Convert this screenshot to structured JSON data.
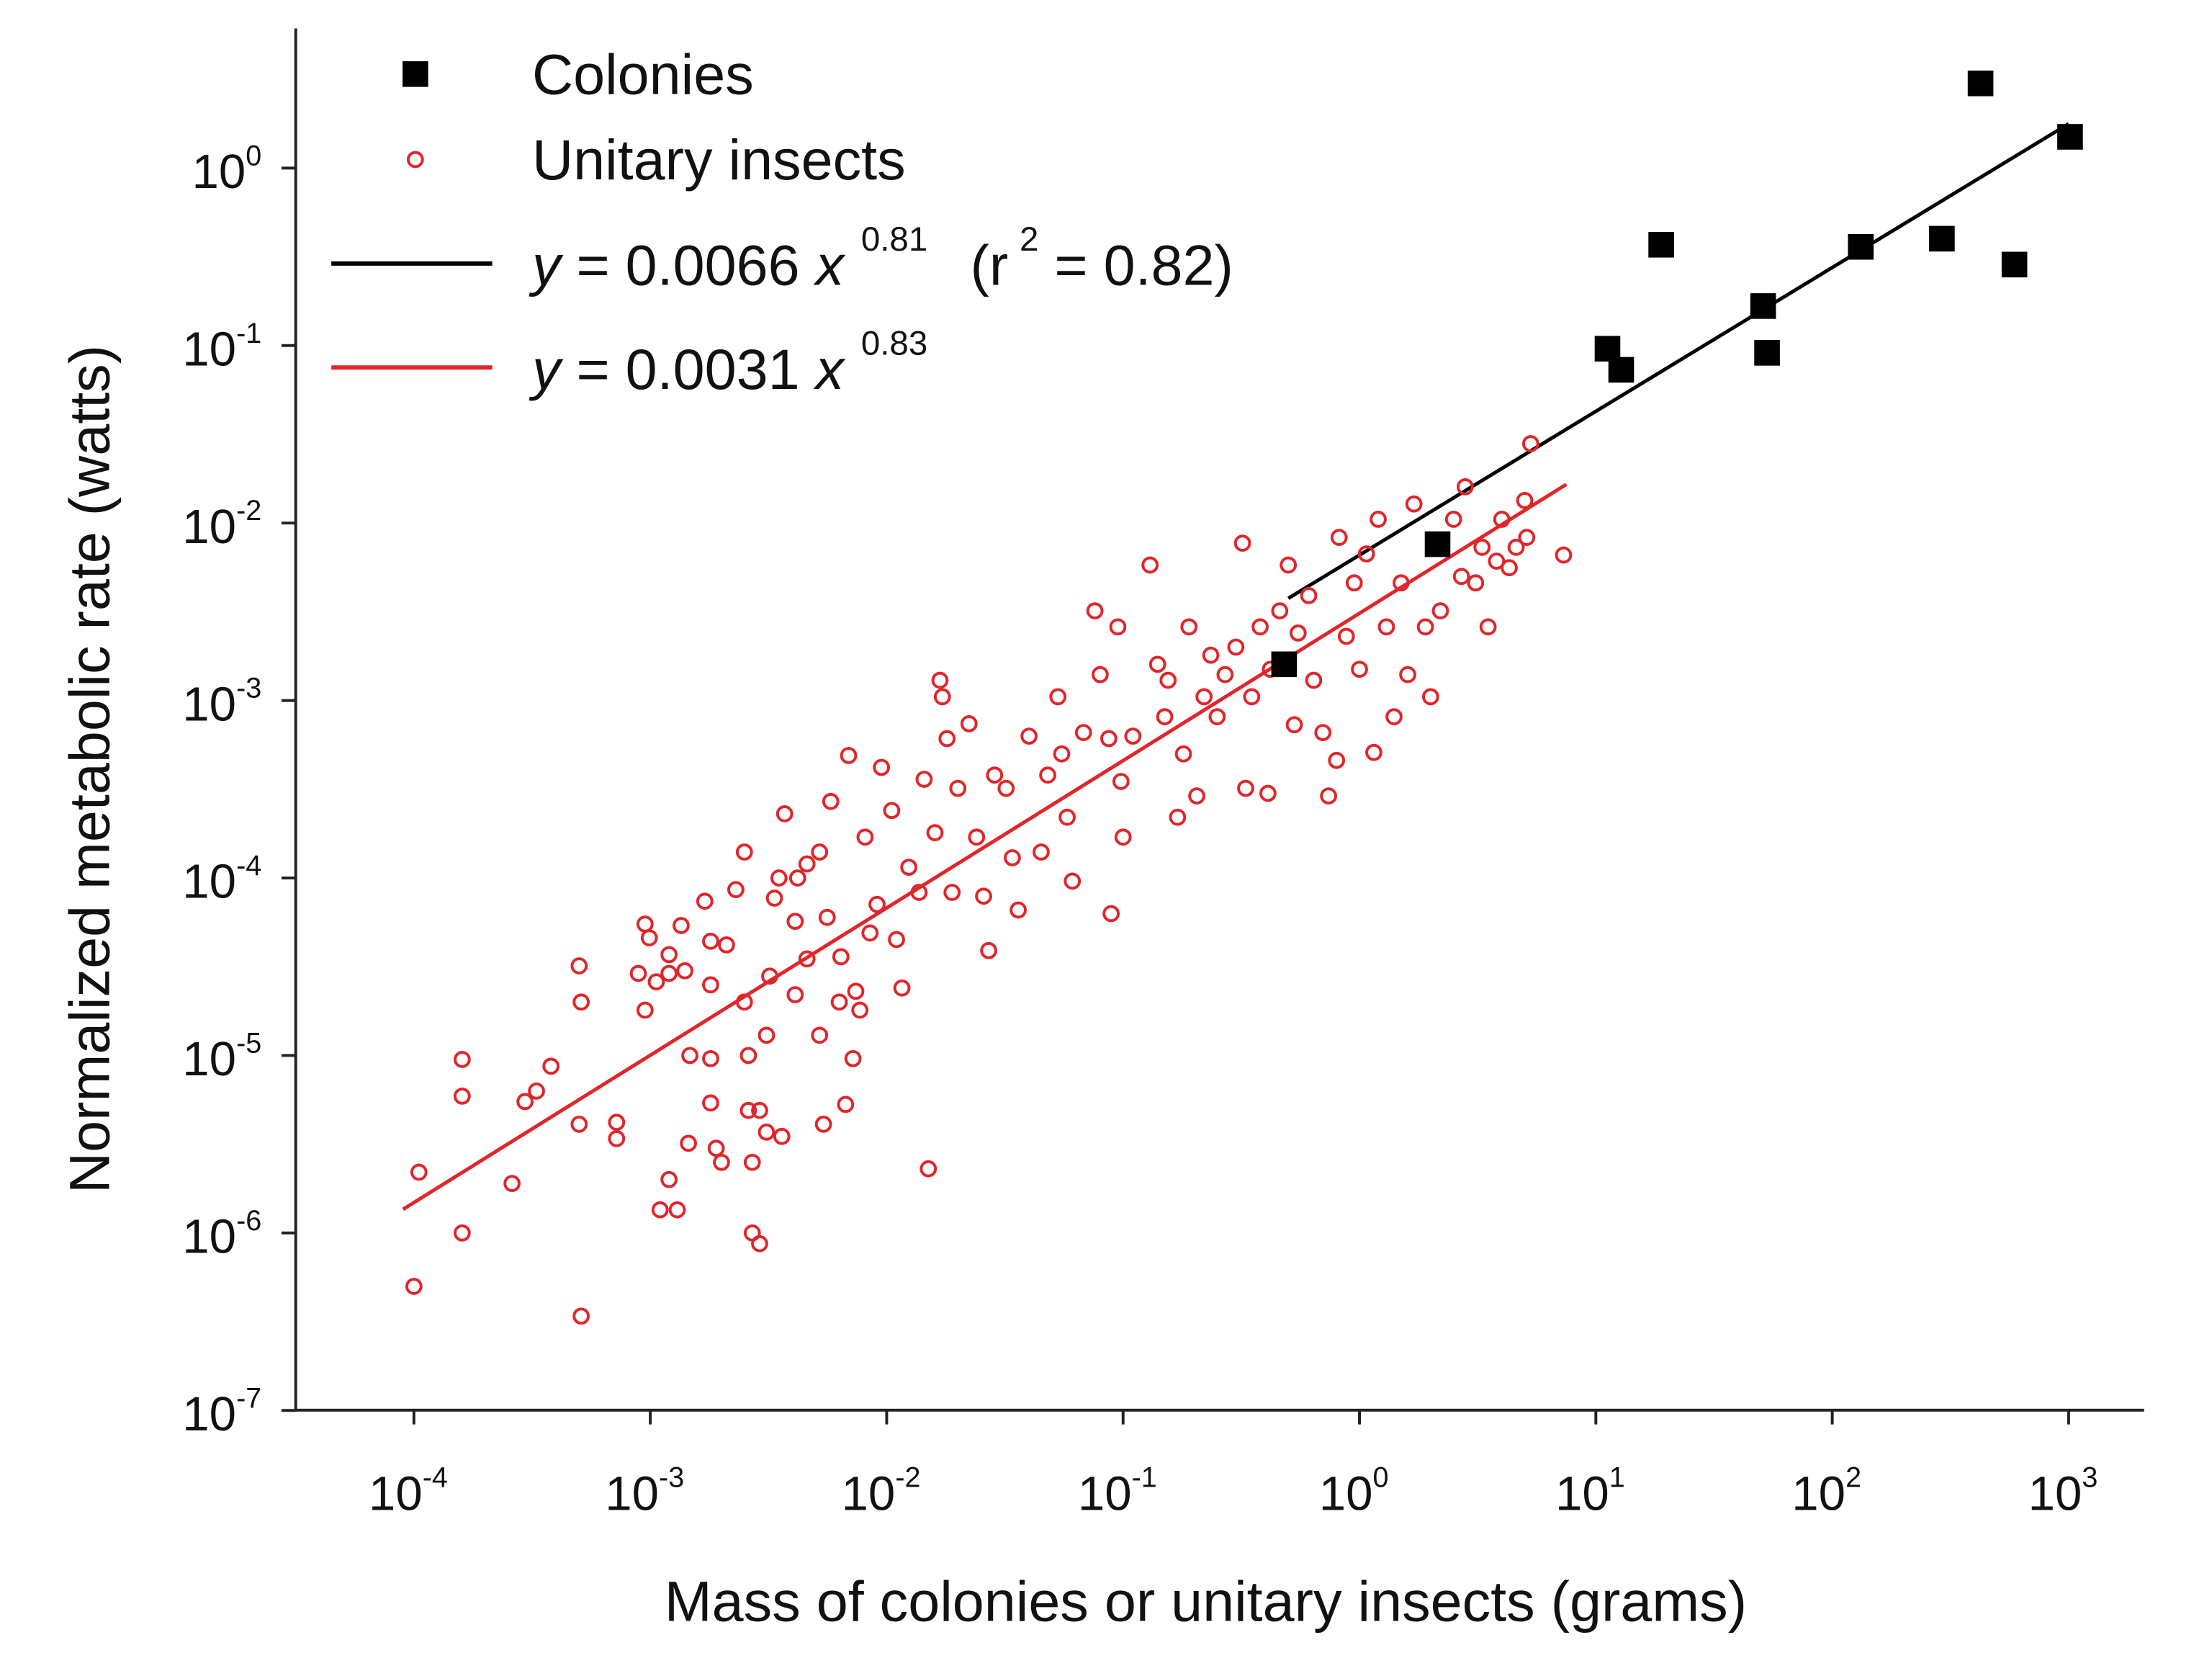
{
  "chart_data": {
    "type": "scatter",
    "xlabel": "Mass of colonies or unitary insects (grams)",
    "ylabel": "Normalized metabolic rate (watts)",
    "x_scale": "log",
    "y_scale": "log",
    "xlim": [
      1.5e-05,
      3000
    ],
    "ylim": [
      1e-07,
      20
    ],
    "grid": false,
    "legend_position": "top-left",
    "x_ticks": [
      {
        "base": "10",
        "exp": "-4",
        "value": 0.0001
      },
      {
        "base": "10",
        "exp": "-3",
        "value": 0.001
      },
      {
        "base": "10",
        "exp": "-2",
        "value": 0.01
      },
      {
        "base": "10",
        "exp": "-1",
        "value": 0.1
      },
      {
        "base": "10",
        "exp": "0",
        "value": 1
      },
      {
        "base": "10",
        "exp": "1",
        "value": 10
      },
      {
        "base": "10",
        "exp": "2",
        "value": 100
      },
      {
        "base": "10",
        "exp": "3",
        "value": 1000
      }
    ],
    "y_ticks": [
      {
        "base": "10",
        "exp": "0",
        "value": 1
      },
      {
        "base": "10",
        "exp": "-1",
        "value": 0.1
      },
      {
        "base": "10",
        "exp": "-2",
        "value": 0.01
      },
      {
        "base": "10",
        "exp": "-3",
        "value": 0.001
      },
      {
        "base": "10",
        "exp": "-4",
        "value": 0.0001
      },
      {
        "base": "10",
        "exp": "-5",
        "value": 1e-05
      },
      {
        "base": "10",
        "exp": "-6",
        "value": 1e-06
      },
      {
        "base": "10",
        "exp": "-7",
        "value": 1e-07
      }
    ],
    "series": [
      {
        "name": "Colonies",
        "marker": "square",
        "color": "#000000",
        "points": [
          [
            424,
            3.0
          ],
          [
            1014,
            1.5
          ],
          [
            18.9,
            0.37
          ],
          [
            11.2,
            0.096
          ],
          [
            12.8,
            0.073
          ],
          [
            51,
            0.167
          ],
          [
            53,
            0.091
          ],
          [
            132,
            0.36
          ],
          [
            291,
            0.4
          ],
          [
            590,
            0.286
          ],
          [
            2.14,
            0.0076
          ],
          [
            0.48,
            0.0016
          ]
        ]
      },
      {
        "name": "Unitary insects",
        "marker": "open-circle",
        "color": "#e0262b",
        "points": [
          [
            0.0001,
            5e-07
          ],
          [
            0.000105,
            2.2e-06
          ],
          [
            0.00016,
            9.5e-06
          ],
          [
            0.00016,
            5.9e-06
          ],
          [
            0.00016,
            1e-06
          ],
          [
            0.00026,
            1.9e-06
          ],
          [
            0.000295,
            5.5e-06
          ],
          [
            0.00033,
            6.3e-06
          ],
          [
            0.00038,
            8.7e-06
          ],
          [
            0.0005,
            3.2e-05
          ],
          [
            0.00051,
            2e-05
          ],
          [
            0.0005,
            4.1e-06
          ],
          [
            0.00051,
            3.4e-07
          ],
          [
            0.00072,
            4.2e-06
          ],
          [
            0.00072,
            3.4e-06
          ],
          [
            0.00095,
            5.5e-05
          ],
          [
            0.00099,
            4.6e-05
          ],
          [
            0.00089,
            2.9e-05
          ],
          [
            0.00095,
            1.8e-05
          ],
          [
            0.00106,
            2.6e-05
          ],
          [
            0.0012,
            2.9e-05
          ],
          [
            0.0012,
            2e-06
          ],
          [
            0.0011,
            1.35e-06
          ],
          [
            0.0013,
            1.35e-06
          ],
          [
            0.00135,
            5.4e-05
          ],
          [
            0.0012,
            3.7e-05
          ],
          [
            0.0014,
            3e-05
          ],
          [
            0.00145,
            3.2e-06
          ],
          [
            0.00147,
            1e-05
          ],
          [
            0.0017,
            7.4e-05
          ],
          [
            0.0018,
            4.4e-05
          ],
          [
            0.0018,
            2.5e-05
          ],
          [
            0.0018,
            9.6e-06
          ],
          [
            0.0018,
            5.4e-06
          ],
          [
            0.0019,
            3e-06
          ],
          [
            0.002,
            2.5e-06
          ],
          [
            0.0021,
            4.2e-05
          ],
          [
            0.0023,
            8.6e-05
          ],
          [
            0.0025,
            0.00014
          ],
          [
            0.0025,
            2e-05
          ],
          [
            0.0026,
            1e-05
          ],
          [
            0.0026,
            4.9e-06
          ],
          [
            0.0027,
            2.5e-06
          ],
          [
            0.0027,
            1e-06
          ],
          [
            0.0029,
            8.7e-07
          ],
          [
            0.0029,
            4.9e-06
          ],
          [
            0.0031,
            3.7e-06
          ],
          [
            0.0031,
            1.3e-05
          ],
          [
            0.0032,
            2.8e-05
          ],
          [
            0.00335,
            7.7e-05
          ],
          [
            0.0035,
            0.0001
          ],
          [
            0.0037,
            0.00023
          ],
          [
            0.0036,
            3.5e-06
          ],
          [
            0.0041,
            5.7e-05
          ],
          [
            0.0041,
            2.2e-05
          ],
          [
            0.0042,
            0.0001
          ],
          [
            0.0046,
            0.00012
          ],
          [
            0.0046,
            3.5e-05
          ],
          [
            0.0052,
            0.00014
          ],
          [
            0.0052,
            1.3e-05
          ],
          [
            0.0054,
            4.1e-06
          ],
          [
            0.0056,
            6e-05
          ],
          [
            0.0058,
            0.00027
          ],
          [
            0.0063,
            2e-05
          ],
          [
            0.0064,
            3.6e-05
          ],
          [
            0.0067,
            5.3e-06
          ],
          [
            0.0069,
            0.00049
          ],
          [
            0.0072,
            9.6e-06
          ],
          [
            0.0074,
            2.3e-05
          ],
          [
            0.0077,
            1.8e-05
          ],
          [
            0.0081,
            0.00017
          ],
          [
            0.0085,
            4.9e-05
          ],
          [
            0.0091,
            7.1e-05
          ],
          [
            0.0095,
            0.00042
          ],
          [
            0.0105,
            0.00024
          ],
          [
            0.011,
            4.5e-05
          ],
          [
            0.0116,
            2.4e-05
          ],
          [
            0.0124,
            0.000115
          ],
          [
            0.0137,
            8.3e-05
          ],
          [
            0.0144,
            0.00036
          ],
          [
            0.015,
            2.3e-06
          ],
          [
            0.016,
            0.00018
          ],
          [
            0.0168,
            0.0013
          ],
          [
            0.0172,
            0.00105
          ],
          [
            0.018,
            0.00061
          ],
          [
            0.0189,
            8.3e-05
          ],
          [
            0.02,
            0.00032
          ],
          [
            0.0223,
            0.00074
          ],
          [
            0.024,
            0.00017
          ],
          [
            0.0257,
            7.9e-05
          ],
          [
            0.027,
            3.9e-05
          ],
          [
            0.0286,
            0.00038
          ],
          [
            0.032,
            0.00032
          ],
          [
            0.034,
            0.00013
          ],
          [
            0.036,
            6.6e-05
          ],
          [
            0.04,
            0.00063
          ],
          [
            0.045,
            0.00014
          ],
          [
            0.048,
            0.00038
          ],
          [
            0.053,
            0.00105
          ],
          [
            0.055,
            0.0005
          ],
          [
            0.058,
            0.00022
          ],
          [
            0.061,
            9.6e-05
          ],
          [
            0.068,
            0.00066
          ],
          [
            0.076,
            0.0032
          ],
          [
            0.08,
            0.0014
          ],
          [
            0.087,
            0.00061
          ],
          [
            0.089,
            6.3e-05
          ],
          [
            0.095,
            0.0026
          ],
          [
            0.098,
            0.00035
          ],
          [
            0.1,
            0.00017
          ],
          [
            0.11,
            0.00063
          ],
          [
            0.13,
            0.0058
          ],
          [
            0.14,
            0.0016
          ],
          [
            0.15,
            0.00081
          ],
          [
            0.155,
            0.0013
          ],
          [
            0.17,
            0.00022
          ],
          [
            0.18,
            0.0005
          ],
          [
            0.19,
            0.0026
          ],
          [
            0.205,
            0.00029
          ],
          [
            0.22,
            0.00105
          ],
          [
            0.235,
            0.0018
          ],
          [
            0.25,
            0.00081
          ],
          [
            0.27,
            0.0014
          ],
          [
            0.3,
            0.002
          ],
          [
            0.32,
            0.0077
          ],
          [
            0.33,
            0.00032
          ],
          [
            0.35,
            0.00105
          ],
          [
            0.38,
            0.0026
          ],
          [
            0.41,
            0.0003
          ],
          [
            0.42,
            0.0015
          ],
          [
            0.46,
            0.0032
          ],
          [
            0.5,
            0.0058
          ],
          [
            0.53,
            0.00073
          ],
          [
            0.55,
            0.0024
          ],
          [
            0.61,
            0.0039
          ],
          [
            0.64,
            0.0013
          ],
          [
            0.7,
            0.00066
          ],
          [
            0.74,
            0.00029
          ],
          [
            0.8,
            0.00046
          ],
          [
            0.82,
            0.0083
          ],
          [
            0.88,
            0.0023
          ],
          [
            0.95,
            0.0046
          ],
          [
            1.0,
            0.0015
          ],
          [
            1.07,
            0.0067
          ],
          [
            1.15,
            0.00051
          ],
          [
            1.2,
            0.0105
          ],
          [
            1.3,
            0.0026
          ],
          [
            1.4,
            0.00081
          ],
          [
            1.5,
            0.0046
          ],
          [
            1.6,
            0.0014
          ],
          [
            1.7,
            0.0128
          ],
          [
            1.9,
            0.0026
          ],
          [
            2.0,
            0.00105
          ],
          [
            2.2,
            0.0032
          ],
          [
            2.5,
            0.0105
          ],
          [
            2.7,
            0.005
          ],
          [
            2.8,
            0.016
          ],
          [
            3.1,
            0.0046
          ],
          [
            3.3,
            0.0073
          ],
          [
            3.5,
            0.0026
          ],
          [
            3.8,
            0.0061
          ],
          [
            4.0,
            0.0105
          ],
          [
            4.3,
            0.0056
          ],
          [
            4.6,
            0.0073
          ],
          [
            5.0,
            0.0134
          ],
          [
            5.3,
            0.028
          ],
          [
            5.1,
            0.0083
          ],
          [
            7.3,
            0.0066
          ]
        ]
      }
    ],
    "fits": [
      {
        "color": "#000000",
        "a": 0.0066,
        "b": 0.81,
        "x_range": [
          0.5,
          1000
        ],
        "label": {
          "y": "y",
          "eq": " = 0.0066 ",
          "x": "x",
          "exp": "0.81",
          "r2_open": "(r",
          "r2_exp": "2",
          "r2_rest": " = 0.82)"
        }
      },
      {
        "color": "#e0262b",
        "a": 0.0031,
        "b": 0.83,
        "x_range": [
          9e-05,
          7.5
        ],
        "label": {
          "y": "y",
          "eq": " = 0.0031 ",
          "x": "x",
          "exp": "0.83"
        }
      }
    ]
  }
}
